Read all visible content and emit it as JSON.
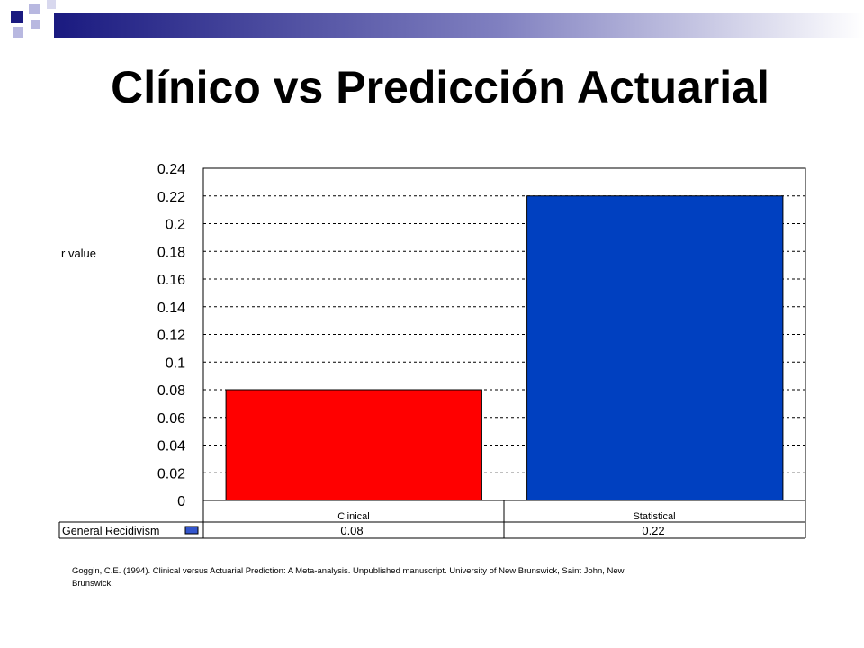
{
  "slide": {
    "title": "Clínico vs Predicción Actuarial",
    "citation": "Goggin, C.E. (1994). Clinical versus Actuarial Prediction: A Meta-analysis. Unpublished manuscript. University of New Brunswick, Saint John, New Brunswick."
  },
  "colors": {
    "deco_navy": "#1a1a80",
    "deco_lavender": "#b8b8e0",
    "legend_swatch": "#3355cc"
  },
  "chart_data": {
    "type": "bar",
    "categories": [
      "Clinical",
      "Statistical"
    ],
    "series": [
      {
        "name": "General Recidivism",
        "values": [
          0.08,
          0.22
        ]
      }
    ],
    "bar_colors": [
      "#ff0000",
      "#0040c0"
    ],
    "table_values": [
      "0.08",
      "0.22"
    ],
    "y_ticks": [
      "0",
      "0.02",
      "0.04",
      "0.06",
      "0.08",
      "0.1",
      "0.12",
      "0.14",
      "0.16",
      "0.18",
      "0.2",
      "0.22",
      "0.24"
    ],
    "ylabel": "r value",
    "ylim": [
      0,
      0.24
    ],
    "grid": true
  }
}
